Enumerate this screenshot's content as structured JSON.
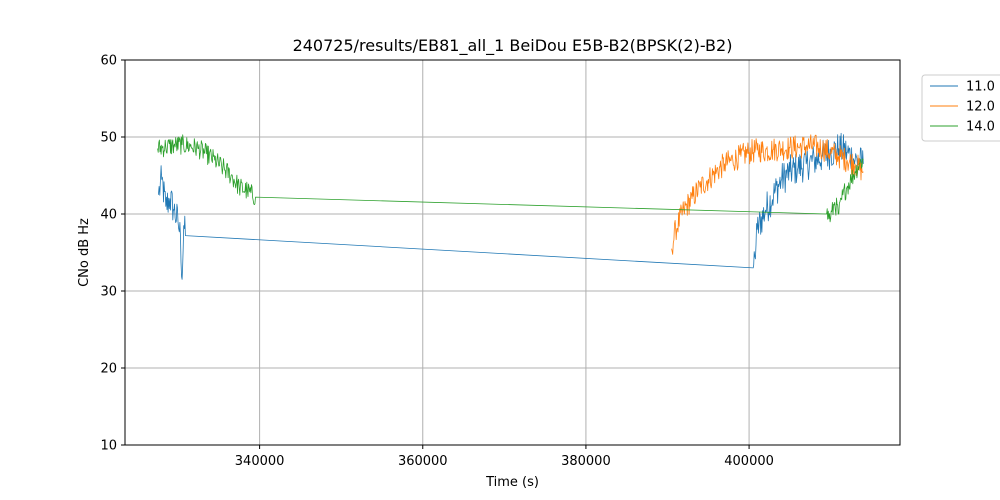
{
  "chart_data": {
    "type": "line",
    "title": "240725/results/EB81_all_1 BeiDou E5B-B2(BPSK(2)-B2)",
    "xlabel": "Time (s)",
    "ylabel": "CNo dB Hz",
    "xlim": [
      323500,
      418500
    ],
    "ylim": [
      10,
      60
    ],
    "xticks": [
      340000,
      360000,
      380000,
      400000
    ],
    "yticks": [
      10,
      20,
      30,
      40,
      50,
      60
    ],
    "xtick_labels": [
      "340000",
      "360000",
      "380000",
      "400000"
    ],
    "ytick_labels": [
      "10",
      "20",
      "30",
      "40",
      "50",
      "60"
    ],
    "grid": true,
    "legend_position": "outside-top-right",
    "series": [
      {
        "name": "11.0",
        "color": "#1f77b4",
        "noise": 2.2,
        "points": [
          [
            327600,
            42.5
          ],
          [
            328000,
            44.5
          ],
          [
            328500,
            41.0
          ],
          [
            329000,
            42.0
          ],
          [
            329500,
            40.5
          ],
          [
            330000,
            39.0
          ],
          [
            330300,
            37.0
          ],
          [
            330500,
            31.5
          ],
          [
            330700,
            38.5
          ],
          [
            330900,
            37.2
          ],
          [
            400500,
            33.0
          ],
          [
            400700,
            34.5
          ],
          [
            401000,
            38.0
          ],
          [
            402000,
            40.5
          ],
          [
            403000,
            42.5
          ],
          [
            404000,
            44.5
          ],
          [
            405000,
            45.5
          ],
          [
            406000,
            46.0
          ],
          [
            407000,
            46.5
          ],
          [
            408000,
            47.0
          ],
          [
            409000,
            47.5
          ],
          [
            410000,
            48.0
          ],
          [
            411000,
            48.5
          ],
          [
            412000,
            48.0
          ],
          [
            413000,
            47.0
          ],
          [
            414000,
            46.5
          ]
        ]
      },
      {
        "name": "12.0",
        "color": "#ff7f0e",
        "noise": 1.6,
        "points": [
          [
            390500,
            35.5
          ],
          [
            391000,
            38.0
          ],
          [
            392000,
            40.5
          ],
          [
            393000,
            42.0
          ],
          [
            394000,
            43.5
          ],
          [
            395000,
            44.5
          ],
          [
            396000,
            45.5
          ],
          [
            397000,
            46.5
          ],
          [
            398000,
            47.0
          ],
          [
            399000,
            47.5
          ],
          [
            400000,
            48.0
          ],
          [
            401000,
            48.3
          ],
          [
            402000,
            48.2
          ],
          [
            403000,
            48.4
          ],
          [
            404000,
            48.5
          ],
          [
            405000,
            48.6
          ],
          [
            406000,
            48.7
          ],
          [
            407000,
            48.8
          ],
          [
            408000,
            48.8
          ],
          [
            409000,
            48.5
          ],
          [
            410000,
            48.0
          ],
          [
            411000,
            47.5
          ],
          [
            412000,
            47.0
          ],
          [
            413000,
            46.5
          ],
          [
            414000,
            45.5
          ]
        ]
      },
      {
        "name": "14.0",
        "color": "#2ca02c",
        "noise": 1.3,
        "points": [
          [
            327500,
            48.5
          ],
          [
            328500,
            48.7
          ],
          [
            329500,
            48.9
          ],
          [
            330500,
            49.0
          ],
          [
            331500,
            48.8
          ],
          [
            332500,
            48.5
          ],
          [
            333500,
            47.8
          ],
          [
            334500,
            47.0
          ],
          [
            335500,
            46.0
          ],
          [
            336500,
            45.0
          ],
          [
            337500,
            43.5
          ],
          [
            338500,
            43.0
          ],
          [
            339500,
            42.2
          ],
          [
            409500,
            40.0
          ],
          [
            410000,
            39.5
          ],
          [
            410500,
            41.5
          ],
          [
            411000,
            40.0
          ],
          [
            411500,
            42.5
          ],
          [
            412000,
            43.5
          ],
          [
            412500,
            44.5
          ],
          [
            413000,
            45.5
          ],
          [
            413500,
            46.5
          ],
          [
            414000,
            47.0
          ]
        ]
      }
    ]
  }
}
